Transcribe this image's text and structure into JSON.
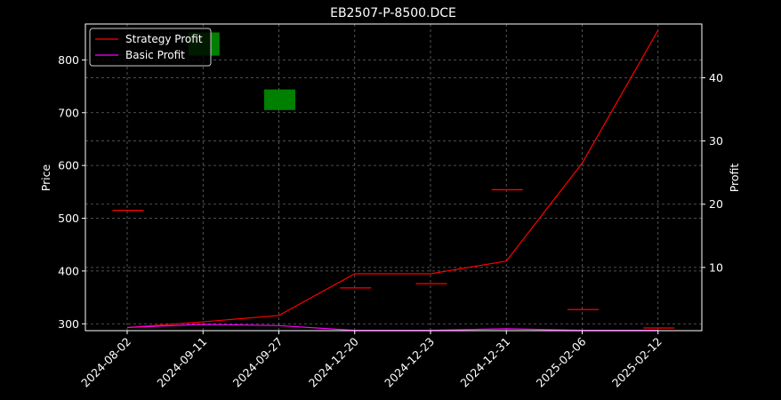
{
  "chart_data": {
    "type": "candlestick+line",
    "title": "EB2507-P-8500.DCE",
    "ylabel_left": "Price",
    "ylabel_right": "Profit",
    "categories": [
      "2024-08-02",
      "2024-09-11",
      "2024-09-27",
      "2024-12-20",
      "2024-12-23",
      "2024-12-31",
      "2025-02-06",
      "2025-02-12"
    ],
    "price_ylim": [
      287,
      868
    ],
    "profit_ylim": [
      0,
      48.5
    ],
    "price_yticks": [
      300,
      400,
      500,
      600,
      700,
      800
    ],
    "profit_yticks": [
      10,
      20,
      30,
      40
    ],
    "grid": true,
    "legend_position": "upper-left",
    "candles": [
      {
        "x": "2024-08-02",
        "open": 515,
        "close": 515,
        "color": "#ff0000"
      },
      {
        "x": "2024-09-11",
        "open": 808,
        "close": 852,
        "color": "#008000"
      },
      {
        "x": "2024-09-27",
        "open": 705,
        "close": 744,
        "color": "#008000"
      },
      {
        "x": "2024-12-20",
        "open": 368,
        "close": 368,
        "color": "#ff0000"
      },
      {
        "x": "2024-12-23",
        "open": 376,
        "close": 376,
        "color": "#ff0000"
      },
      {
        "x": "2024-12-31",
        "open": 554,
        "close": 554,
        "color": "#ff0000"
      },
      {
        "x": "2025-02-06",
        "open": 327,
        "close": 327,
        "color": "#ff0000"
      },
      {
        "x": "2025-02-12",
        "open": 292,
        "close": 292,
        "color": "#ff0000"
      }
    ],
    "series": [
      {
        "name": "Strategy Profit",
        "color": "#ff0000",
        "values": [
          0.5,
          1.4,
          2.4,
          9.0,
          9.0,
          11.0,
          26.5,
          47.5
        ]
      },
      {
        "name": "Basic Profit",
        "color": "#ff00ff",
        "values": [
          0.5,
          1.0,
          0.8,
          0.05,
          0.05,
          0.3,
          0.05,
          0.05
        ]
      }
    ]
  }
}
